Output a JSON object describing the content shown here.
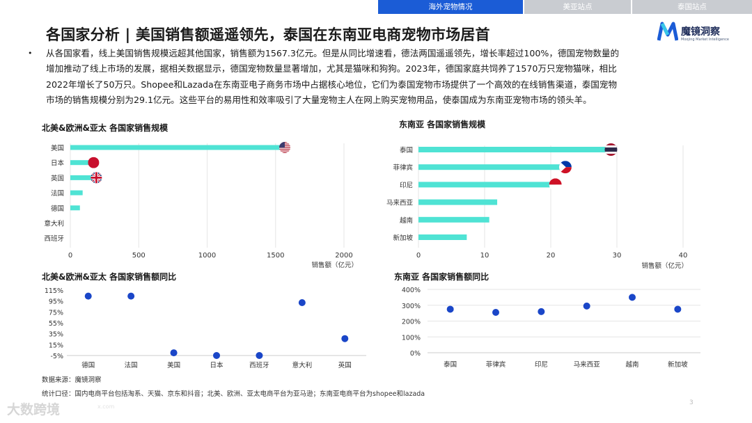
{
  "nav": {
    "tabs": [
      {
        "label": "海外宠物情况",
        "active": true
      },
      {
        "label": "美亚站点",
        "active": false
      },
      {
        "label": "泰国站点",
        "active": false
      }
    ]
  },
  "title": "各国家分析 | 美国销售额遥遥领先，泰国在东南亚电商宠物市场居首",
  "logo": {
    "name": "魔镜洞察",
    "tagline": "Moojing Market Intelligence"
  },
  "intro": {
    "bullet": "•",
    "lines": [
      "从各国家看，线上美国销售规模远超其他国家，销售额为1567.3亿元。但是从同比增速看，德法两国遥遥领先，增长率超过100%，德国宠物数量的",
      "增加推动了线上市场的发展，据相关数据显示，德国宠物数量显著增加，尤其是猫咪和狗狗。2023年，德国家庭共饲养了1570万只宠物猫咪，相比",
      "2022年增长了50万只。Shopee和Lazada在东南亚电子商务市场中占据核心地位，它们为泰国宠物市场提供了一个高效的在线销售渠道，泰国宠物",
      "市场的销售规模分别为29.1亿元。这些平台的易用性和效率吸引了大量宠物主人在网上购买宠物用品，使泰国成为东南亚宠物市场的领头羊。"
    ]
  },
  "colors": {
    "bar": "#4fe3d4",
    "dot": "#1a46c8",
    "grid": "#e6e6e6",
    "nav_active": "#1b5cd6",
    "nav_inactive": "#c9ccd1"
  },
  "chart_data": [
    {
      "type": "bar",
      "orientation": "horizontal",
      "title": "北美&欧洲&亚太 各国家销售规模",
      "categories": [
        "美国",
        "日本",
        "英国",
        "法国",
        "德国",
        "意大利",
        "西班牙"
      ],
      "values": [
        1567.3,
        170,
        190,
        90,
        70,
        0,
        0
      ],
      "flags": [
        "us-flag",
        "japan-flag",
        "uk-flag",
        "",
        "",
        "",
        ""
      ],
      "xlabel": "销售额（亿元）",
      "xlim": [
        0,
        2000
      ],
      "xticks": [
        "0",
        "500",
        "1000",
        "1500",
        "2000"
      ],
      "grid": true
    },
    {
      "type": "bar",
      "orientation": "horizontal",
      "title": "东南亚 各国家销售规模",
      "categories": [
        "泰国",
        "菲律宾",
        "印尼",
        "马来西亚",
        "越南",
        "新加坡"
      ],
      "values": [
        29.1,
        22.2,
        20.7,
        11.9,
        10.7,
        7.3
      ],
      "flags": [
        "thailand-flag",
        "philippines-flag",
        "indonesia-flag",
        "",
        "",
        ""
      ],
      "xlabel": "销售额（亿元）",
      "xlim": [
        0,
        40
      ],
      "xticks": [
        "0",
        "10",
        "20",
        "30",
        "40"
      ],
      "grid": true
    },
    {
      "type": "scatter",
      "title": "北美&欧洲&亚太 各国家销售额同比",
      "categories": [
        "德国",
        "法国",
        "美国",
        "日本",
        "西班牙",
        "意大利",
        "英国"
      ],
      "values": [
        104,
        104,
        0,
        -5,
        -5,
        92,
        26
      ],
      "ylim": [
        -5,
        115
      ],
      "yticks": [
        "115%",
        "95%",
        "75%",
        "55%",
        "35%",
        "15%",
        "-5%"
      ],
      "grid": false
    },
    {
      "type": "scatter",
      "title": "东南亚 各国家销售额同比",
      "categories": [
        "泰国",
        "菲律宾",
        "印尼",
        "马来西亚",
        "越南",
        "新加坡"
      ],
      "values": [
        275,
        255,
        260,
        295,
        350,
        275
      ],
      "ylim": [
        0,
        400
      ],
      "yticks": [
        "400%",
        "300%",
        "200%",
        "100%",
        "0%"
      ],
      "grid": true
    }
  ],
  "footnotes": {
    "source": "数据来源：魔镜洞察",
    "scope": "统计口径：国内电商平台包括淘系、天猫、京东和抖音；北美、欧洲、亚太电商平台为亚马逊；东南亚电商平台为shopee和lazada"
  },
  "page_number": "3",
  "watermark": {
    "text": "大数跨境",
    "sub": "x.com"
  }
}
